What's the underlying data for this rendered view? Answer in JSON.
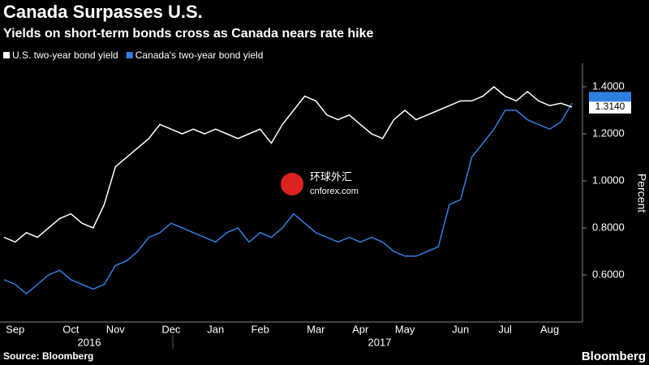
{
  "chart_data": {
    "type": "line",
    "title": "Canada Surpasses U.S.",
    "subtitle": "Yields on short-term bonds cross as Canada nears rate hike",
    "y_label": "Percent",
    "source": "Source: Bloomberg",
    "brand": "Bloomberg",
    "watermark": [
      "环球外汇",
      "cnforex.com"
    ],
    "years": [
      "2016",
      "2017"
    ],
    "x": [
      null,
      "Sep",
      null,
      null,
      null,
      null,
      "Oct",
      null,
      null,
      null,
      "Nov",
      null,
      null,
      null,
      null,
      "Dec",
      null,
      null,
      null,
      "Jan",
      null,
      null,
      null,
      "Feb",
      null,
      null,
      null,
      null,
      "Mar",
      null,
      null,
      null,
      "Apr",
      null,
      null,
      null,
      "May",
      null,
      null,
      null,
      null,
      "Jun",
      null,
      null,
      null,
      "Jul",
      null,
      null,
      null,
      "Aug",
      null,
      null
    ],
    "series": [
      {
        "name": "U.S. two-year bond yield",
        "color": "#ffffff",
        "last_value_label": "1.3140",
        "values": [
          0.76,
          0.74,
          0.78,
          0.76,
          0.8,
          0.84,
          0.86,
          0.82,
          0.8,
          0.9,
          1.06,
          1.1,
          1.14,
          1.18,
          1.24,
          1.22,
          1.2,
          1.22,
          1.2,
          1.22,
          1.2,
          1.18,
          1.2,
          1.22,
          1.16,
          1.24,
          1.3,
          1.36,
          1.34,
          1.28,
          1.26,
          1.28,
          1.24,
          1.2,
          1.18,
          1.26,
          1.3,
          1.26,
          1.28,
          1.3,
          1.32,
          1.34,
          1.34,
          1.36,
          1.4,
          1.36,
          1.34,
          1.38,
          1.34,
          1.32,
          1.33,
          1.314
        ]
      },
      {
        "name": "Canada's two-year bond yield",
        "color": "#2f7fe0",
        "values": [
          0.58,
          0.56,
          0.52,
          0.56,
          0.6,
          0.62,
          0.58,
          0.56,
          0.54,
          0.56,
          0.64,
          0.66,
          0.7,
          0.76,
          0.78,
          0.82,
          0.8,
          0.78,
          0.76,
          0.74,
          0.78,
          0.8,
          0.74,
          0.78,
          0.76,
          0.8,
          0.86,
          0.82,
          0.78,
          0.76,
          0.74,
          0.76,
          0.74,
          0.76,
          0.74,
          0.7,
          0.68,
          0.68,
          0.7,
          0.72,
          0.9,
          0.92,
          1.1,
          1.16,
          1.22,
          1.3,
          1.3,
          1.26,
          1.24,
          1.22,
          1.25,
          1.33
        ]
      }
    ],
    "ylim": [
      0.4,
      1.5
    ],
    "yticks": [
      {
        "value": 0.6,
        "label": "0.6000"
      },
      {
        "value": 0.8,
        "label": "0.8000"
      },
      {
        "value": 1.0,
        "label": "1.0000"
      },
      {
        "value": 1.2,
        "label": "1.2000"
      },
      {
        "value": 1.4,
        "label": "1.4000"
      }
    ],
    "legend": "top-left"
  }
}
